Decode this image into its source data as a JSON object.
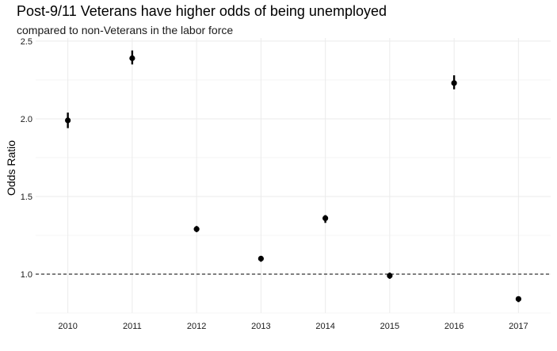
{
  "chart_data": {
    "type": "scatter",
    "title": "Post-9/11 Veterans have higher odds of being unemployed",
    "subtitle": "compared to non-Veterans in the labor force",
    "xlabel": "",
    "ylabel": "Odds Ratio",
    "categories": [
      "2010",
      "2011",
      "2012",
      "2013",
      "2014",
      "2015",
      "2016",
      "2017"
    ],
    "series": [
      {
        "values": [
          1.99,
          2.39,
          1.29,
          1.1,
          1.36,
          0.99,
          2.23,
          0.84
        ],
        "lower": [
          1.94,
          2.35,
          1.27,
          1.08,
          1.33,
          0.97,
          2.19,
          0.82
        ],
        "upper": [
          2.04,
          2.44,
          1.31,
          1.11,
          1.38,
          1.01,
          2.28,
          0.85
        ]
      }
    ],
    "ylim": [
      0.75,
      2.52
    ],
    "yticks": [
      "1.0",
      "1.5",
      "2.0",
      "2.5"
    ],
    "reference_line": 1.0,
    "grid": true,
    "legend": "none",
    "colors": {
      "points": "#000000",
      "grid": "#ebebeb",
      "reference": "#000000",
      "text": "#000000",
      "tick_text": "#1a1a1a"
    }
  }
}
